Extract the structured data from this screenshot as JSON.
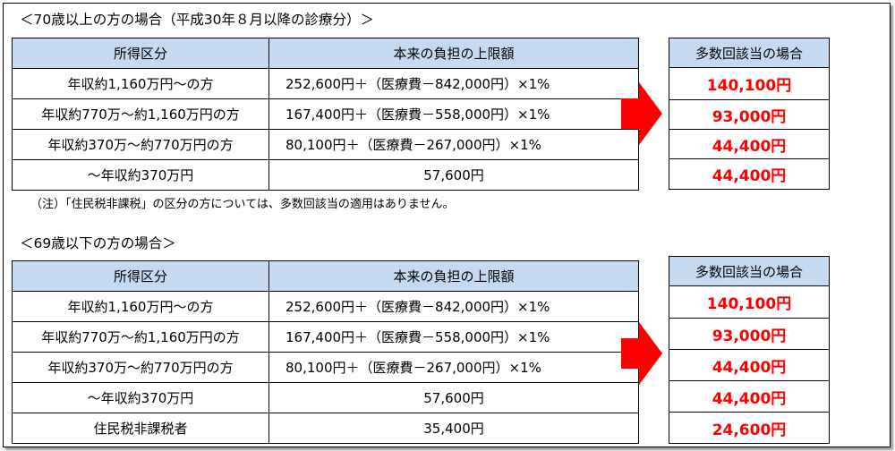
{
  "section1": {
    "title": "＜70歳以上の方の場合（平成30年８月以降の診療分）＞",
    "headers": [
      "所得区分",
      "本来の負担の上限額"
    ],
    "rows": [
      [
        "年収約1,160万円～の方",
        "252,600円＋（医療費－842,000円）×1%"
      ],
      [
        "年収約770万～約1,160万円の方",
        "167,400円＋（医療費－558,000円）×1%"
      ],
      [
        "年収約370万～約770万円の方",
        "80,100円＋（医療費－267,000円）×1%"
      ],
      [
        "～年収約370万円",
        "57,600円"
      ]
    ],
    "result_header": "多数回該当の場合",
    "results": [
      "140,100円",
      "93,000円",
      "44,400円",
      "44,400円"
    ],
    "note": "（注）「住民税非課税」の区分の方については、多数回該当の適用はありません。"
  },
  "section2": {
    "title": "＜69歳以下の方の場合＞",
    "headers": [
      "所得区分",
      "本来の負担の上限額"
    ],
    "rows": [
      [
        "年収約1,160万円～の方",
        "252,600円＋（医療費－842,000円）×1%"
      ],
      [
        "年収約770万～約1,160万円の方",
        "167,400円＋（医療費－558,000円）×1%"
      ],
      [
        "年収約370万～約770万円の方",
        "80,100円＋（医療費－267,000円）×1%"
      ],
      [
        "～年収約370万円",
        "57,600円"
      ],
      [
        "住民税非課税者",
        "35,400円"
      ]
    ],
    "result_header": "多数回該当の場合",
    "results": [
      "140,100円",
      "93,000円",
      "44,400円",
      "44,400円",
      "24,600円"
    ]
  },
  "colors": {
    "header_bg": "#c5d9f1",
    "accent_red": "#ff0000"
  },
  "icons": {
    "arrow": "right-arrow-icon"
  }
}
